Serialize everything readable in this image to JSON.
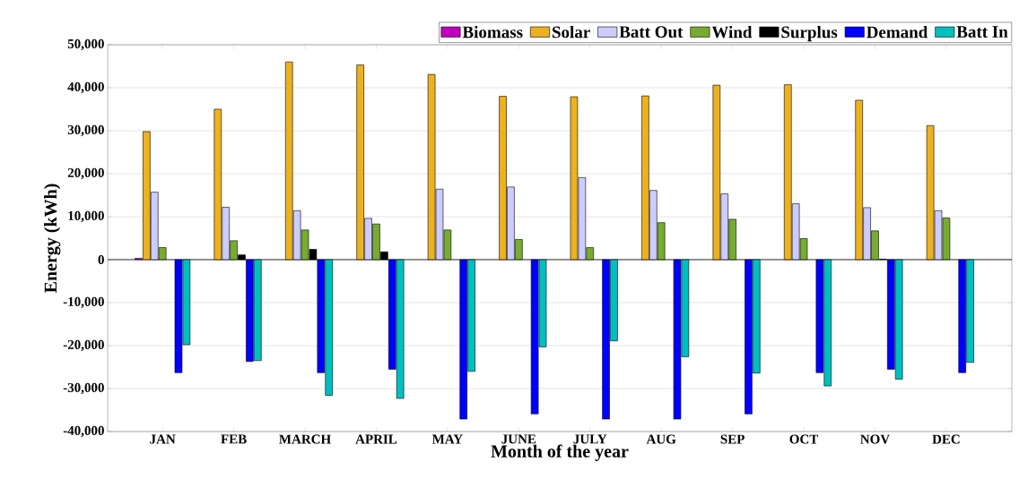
{
  "chart_data": {
    "type": "bar",
    "xlabel": "Month of the year",
    "ylabel": "Energy (kWh)",
    "categories": [
      "JAN",
      "FEB",
      "MARCH",
      "APRIL",
      "MAY",
      "JUNE",
      "JULY",
      "AUG",
      "SEP",
      "OCT",
      "NOV",
      "DEC"
    ],
    "series": [
      {
        "name": "Biomass",
        "color": "#c000c0",
        "values": [
          300,
          0,
          0,
          0,
          0,
          0,
          0,
          0,
          0,
          0,
          0,
          0
        ]
      },
      {
        "name": "Solar",
        "color": "#edb120",
        "values": [
          29800,
          35000,
          46000,
          45300,
          43100,
          38000,
          37900,
          38100,
          40600,
          40700,
          37100,
          31200
        ]
      },
      {
        "name": "Batt Out",
        "color": "#ccccff",
        "values": [
          15700,
          12200,
          11400,
          9600,
          16400,
          16900,
          19100,
          16100,
          15300,
          13000,
          12100,
          11400
        ]
      },
      {
        "name": "Wind",
        "color": "#77ac30",
        "values": [
          2800,
          4400,
          6900,
          8300,
          6900,
          4700,
          2800,
          8600,
          9400,
          4900,
          6700,
          9700
        ]
      },
      {
        "name": "Surplus",
        "color": "#000000",
        "values": [
          0,
          1100,
          2400,
          1800,
          0,
          0,
          0,
          0,
          0,
          0,
          100,
          0
        ]
      },
      {
        "name": "Demand",
        "color": "#0000ff",
        "values": [
          -26300,
          -23700,
          -26300,
          -25500,
          -37100,
          -35900,
          -37100,
          -37100,
          -35900,
          -26300,
          -25500,
          -26300
        ]
      },
      {
        "name": "Batt In",
        "color": "#00bfbf",
        "values": [
          -19800,
          -23500,
          -31600,
          -32300,
          -26000,
          -20300,
          -18900,
          -22600,
          -26400,
          -29400,
          -27800,
          -23900
        ]
      }
    ],
    "ylim": [
      -40000,
      50000
    ],
    "yticks": [
      {
        "value": -40000,
        "label": "-40,000"
      },
      {
        "value": -30000,
        "label": "-30,000"
      },
      {
        "value": -20000,
        "label": "-20,000"
      },
      {
        "value": -10000,
        "label": "-10,000"
      },
      {
        "value": 0,
        "label": "0"
      },
      {
        "value": 10000,
        "label": "10,000"
      },
      {
        "value": 20000,
        "label": "20,000"
      },
      {
        "value": 30000,
        "label": "30,000"
      },
      {
        "value": 40000,
        "label": "40,000"
      },
      {
        "value": 50000,
        "label": "50,000"
      }
    ],
    "grid": "y",
    "legend": "top right"
  }
}
